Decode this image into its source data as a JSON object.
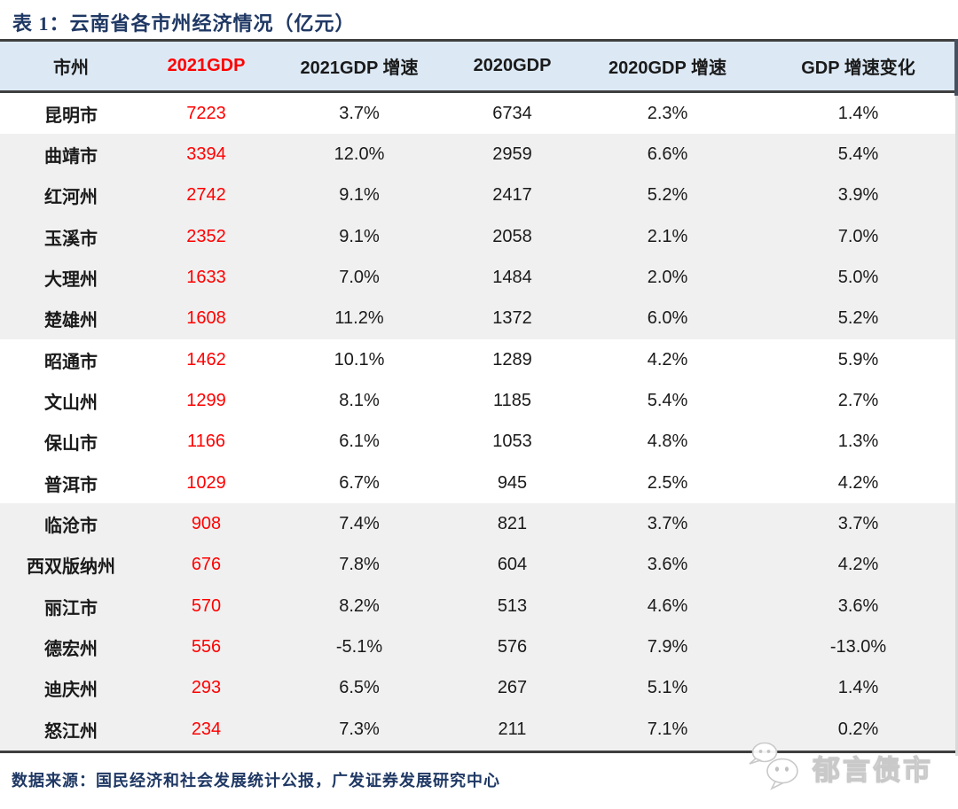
{
  "title": "表 1：云南省各市州经济情况（亿元）",
  "table": {
    "columns": [
      {
        "label": "市州"
      },
      {
        "label": "2021GDP",
        "highlight": true
      },
      {
        "label": "2021GDP 增速"
      },
      {
        "label": "2020GDP"
      },
      {
        "label": "2020GDP 增速"
      },
      {
        "label": "GDP 增速变化"
      }
    ],
    "rows": [
      {
        "name": "昆明市",
        "gdp2021": "7223",
        "growth2021": "3.7%",
        "gdp2020": "6734",
        "growth2020": "2.3%",
        "change": "1.4%",
        "shaded": false
      },
      {
        "name": "曲靖市",
        "gdp2021": "3394",
        "growth2021": "12.0%",
        "gdp2020": "2959",
        "growth2020": "6.6%",
        "change": "5.4%",
        "shaded": true
      },
      {
        "name": "红河州",
        "gdp2021": "2742",
        "growth2021": "9.1%",
        "gdp2020": "2417",
        "growth2020": "5.2%",
        "change": "3.9%",
        "shaded": true
      },
      {
        "name": "玉溪市",
        "gdp2021": "2352",
        "growth2021": "9.1%",
        "gdp2020": "2058",
        "growth2020": "2.1%",
        "change": "7.0%",
        "shaded": true
      },
      {
        "name": "大理州",
        "gdp2021": "1633",
        "growth2021": "7.0%",
        "gdp2020": "1484",
        "growth2020": "2.0%",
        "change": "5.0%",
        "shaded": true
      },
      {
        "name": "楚雄州",
        "gdp2021": "1608",
        "growth2021": "11.2%",
        "gdp2020": "1372",
        "growth2020": "6.0%",
        "change": "5.2%",
        "shaded": true
      },
      {
        "name": "昭通市",
        "gdp2021": "1462",
        "growth2021": "10.1%",
        "gdp2020": "1289",
        "growth2020": "4.2%",
        "change": "5.9%",
        "shaded": false
      },
      {
        "name": "文山州",
        "gdp2021": "1299",
        "growth2021": "8.1%",
        "gdp2020": "1185",
        "growth2020": "5.4%",
        "change": "2.7%",
        "shaded": false
      },
      {
        "name": "保山市",
        "gdp2021": "1166",
        "growth2021": "6.1%",
        "gdp2020": "1053",
        "growth2020": "4.8%",
        "change": "1.3%",
        "shaded": false
      },
      {
        "name": "普洱市",
        "gdp2021": "1029",
        "growth2021": "6.7%",
        "gdp2020": "945",
        "growth2020": "2.5%",
        "change": "4.2%",
        "shaded": false
      },
      {
        "name": "临沧市",
        "gdp2021": "908",
        "growth2021": "7.4%",
        "gdp2020": "821",
        "growth2020": "3.7%",
        "change": "3.7%",
        "shaded": true
      },
      {
        "name": "西双版纳州",
        "gdp2021": "676",
        "growth2021": "7.8%",
        "gdp2020": "604",
        "growth2020": "3.6%",
        "change": "4.2%",
        "shaded": true
      },
      {
        "name": "丽江市",
        "gdp2021": "570",
        "growth2021": "8.2%",
        "gdp2020": "513",
        "growth2020": "4.6%",
        "change": "3.6%",
        "shaded": true
      },
      {
        "name": "德宏州",
        "gdp2021": "556",
        "growth2021": "-5.1%",
        "gdp2020": "576",
        "growth2020": "7.9%",
        "change": "-13.0%",
        "shaded": true
      },
      {
        "name": "迪庆州",
        "gdp2021": "293",
        "growth2021": "6.5%",
        "gdp2020": "267",
        "growth2020": "5.1%",
        "change": "1.4%",
        "shaded": true
      },
      {
        "name": "怒江州",
        "gdp2021": "234",
        "growth2021": "7.3%",
        "gdp2020": "211",
        "growth2020": "7.1%",
        "change": "0.2%",
        "shaded": true
      }
    ]
  },
  "footer": {
    "source": "数据来源：国民经济和社会发展统计公报，广发证券发展研究中心"
  },
  "watermark": {
    "icon": "wechat-icon",
    "label": "郁言债市"
  },
  "colors": {
    "navy": "#1F3864",
    "red": "#FF0000",
    "header_bg": "#DCE9F5",
    "row_shade": "#F0F0F0",
    "border_dark": "#3F3F3F",
    "text": "#1A1A1A"
  },
  "chart_data": {
    "type": "table",
    "title": "表 1：云南省各市州经济情况（亿元）",
    "columns": [
      "市州",
      "2021GDP",
      "2021GDP 增速",
      "2020GDP",
      "2020GDP 增速",
      "GDP 增速变化"
    ],
    "rows": [
      [
        "昆明市",
        7223,
        "3.7%",
        6734,
        "2.3%",
        "1.4%"
      ],
      [
        "曲靖市",
        3394,
        "12.0%",
        2959,
        "6.6%",
        "5.4%"
      ],
      [
        "红河州",
        2742,
        "9.1%",
        2417,
        "5.2%",
        "3.9%"
      ],
      [
        "玉溪市",
        2352,
        "9.1%",
        2058,
        "2.1%",
        "7.0%"
      ],
      [
        "大理州",
        1633,
        "7.0%",
        1484,
        "2.0%",
        "5.0%"
      ],
      [
        "楚雄州",
        1608,
        "11.2%",
        1372,
        "6.0%",
        "5.2%"
      ],
      [
        "昭通市",
        1462,
        "10.1%",
        1289,
        "4.2%",
        "5.9%"
      ],
      [
        "文山州",
        1299,
        "8.1%",
        1185,
        "5.4%",
        "2.7%"
      ],
      [
        "保山市",
        1166,
        "6.1%",
        1053,
        "4.8%",
        "1.3%"
      ],
      [
        "普洱市",
        1029,
        "6.7%",
        945,
        "2.5%",
        "4.2%"
      ],
      [
        "临沧市",
        908,
        "7.4%",
        821,
        "3.7%",
        "3.7%"
      ],
      [
        "西双版纳州",
        676,
        "7.8%",
        604,
        "3.6%",
        "4.2%"
      ],
      [
        "丽江市",
        570,
        "8.2%",
        513,
        "4.6%",
        "3.6%"
      ],
      [
        "德宏州",
        556,
        "-5.1%",
        576,
        "7.9%",
        "-13.0%"
      ],
      [
        "迪庆州",
        293,
        "6.5%",
        267,
        "5.1%",
        "1.4%"
      ],
      [
        "怒江州",
        234,
        "7.3%",
        211,
        "7.1%",
        "0.2%"
      ]
    ],
    "notes": "数据来源：国民经济和社会发展统计公报，广发证券发展研究中心",
    "highlighted_column": "2021GDP"
  }
}
